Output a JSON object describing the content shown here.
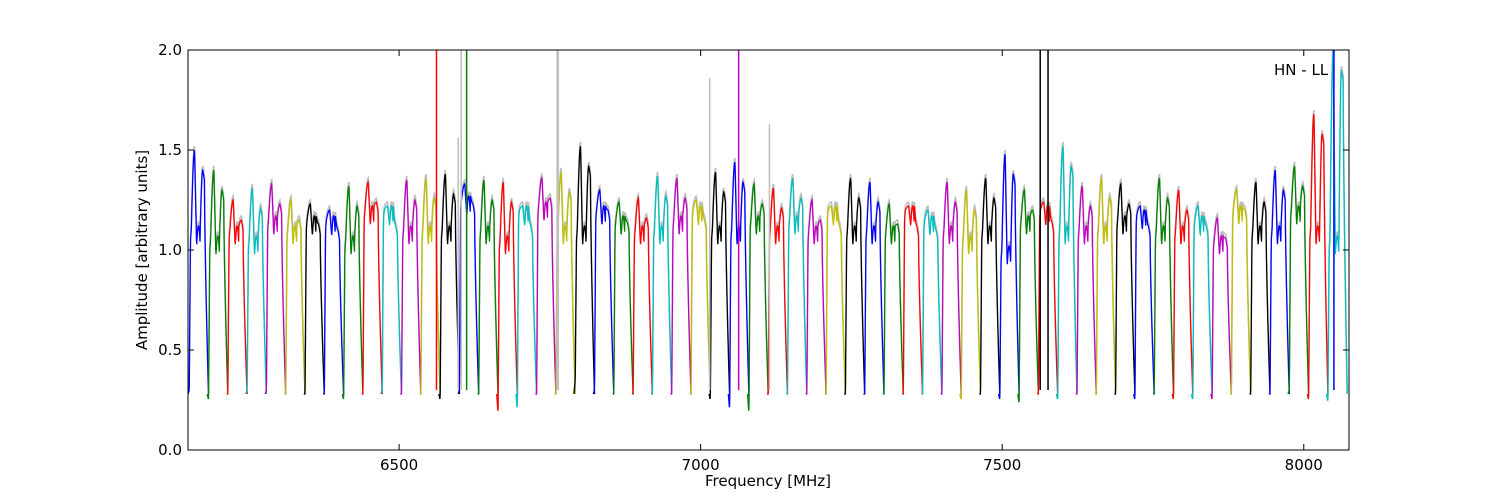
{
  "chart_data": {
    "type": "line",
    "title": "",
    "xlabel": "Frequency [MHz]",
    "ylabel": "Amplitude [arbitrary units]",
    "annotation": "HN - LL",
    "xlim": [
      6150,
      8075
    ],
    "ylim": [
      0.0,
      2.0
    ],
    "x_ticks": [
      6500,
      7000,
      7500,
      8000
    ],
    "x_tick_labels": [
      "6500",
      "7000",
      "7500",
      "8000"
    ],
    "y_ticks": [
      0.0,
      0.5,
      1.0,
      1.5,
      2.0
    ],
    "y_tick_labels": [
      "0.0",
      "0.5",
      "1.0",
      "1.5",
      "2.0"
    ],
    "grid": false,
    "legend": "none",
    "background_series_color": "#bfbfbf",
    "color_cycle": [
      "#0000ff",
      "#008000",
      "#ff0000",
      "#00bfbf",
      "#bf00bf",
      "#bfbf00",
      "#000000"
    ],
    "segment_start_mhz": 6150,
    "segment_width_mhz": 32,
    "segment_count": 60,
    "segment_peak_levels": [
      1.5,
      1.4,
      1.25,
      1.31,
      1.33,
      1.25,
      1.23,
      1.2,
      1.32,
      1.34,
      1.22,
      1.35,
      1.36,
      1.38,
      1.33,
      1.35,
      1.34,
      1.22,
      1.36,
      1.39,
      1.52,
      1.3,
      1.24,
      1.26,
      1.37,
      1.36,
      1.25,
      1.39,
      1.44,
      1.33,
      1.31,
      1.36,
      1.25,
      1.22,
      1.36,
      1.34,
      1.23,
      1.22,
      1.2,
      1.34,
      1.3,
      1.36,
      1.48,
      1.3,
      1.24,
      1.52,
      1.32,
      1.36,
      1.33,
      1.22,
      1.36,
      1.3,
      1.22,
      1.16,
      1.3,
      1.34,
      1.4,
      1.42,
      1.68,
      2.0
    ],
    "segment_plateau_levels": [
      1.1,
      1.05,
      1.1,
      1.05,
      1.15,
      1.1,
      1.15,
      1.15,
      1.05,
      1.2,
      1.2,
      1.1,
      1.1,
      1.1,
      1.25,
      1.1,
      1.05,
      1.2,
      1.22,
      1.1,
      1.1,
      1.2,
      1.15,
      1.1,
      1.1,
      1.15,
      1.2,
      1.1,
      1.1,
      1.15,
      1.1,
      1.15,
      1.1,
      1.2,
      1.1,
      1.1,
      1.1,
      1.2,
      1.15,
      1.1,
      1.05,
      1.1,
      1.0,
      1.15,
      1.2,
      1.1,
      1.1,
      1.1,
      1.15,
      1.18,
      1.1,
      1.1,
      1.15,
      1.05,
      1.2,
      1.1,
      1.1,
      1.2,
      1.1,
      1.05
    ],
    "segment_trough_levels": [
      0.3,
      0.25,
      0.28,
      0.3,
      0.3,
      0.28,
      0.28,
      0.28,
      0.25,
      0.28,
      0.3,
      0.28,
      0.28,
      0.25,
      0.3,
      0.28,
      0.18,
      0.2,
      0.28,
      0.28,
      0.35,
      0.3,
      0.28,
      0.28,
      0.28,
      0.28,
      0.28,
      0.25,
      0.2,
      0.18,
      0.28,
      0.28,
      0.28,
      0.28,
      0.28,
      0.28,
      0.28,
      0.28,
      0.28,
      0.28,
      0.25,
      0.28,
      0.25,
      0.23,
      0.28,
      0.25,
      0.28,
      0.28,
      0.28,
      0.25,
      0.28,
      0.25,
      0.25,
      0.25,
      0.28,
      0.28,
      0.28,
      0.3,
      0.25,
      0.24
    ],
    "spikes": [
      {
        "x": 6562,
        "y": 2.0,
        "color": "#ff0000"
      },
      {
        "x": 6598,
        "y": 1.56,
        "color": "#bfbfbf"
      },
      {
        "x": 6603,
        "y": 2.0,
        "color": "#bfbfbf"
      },
      {
        "x": 6612,
        "y": 2.0,
        "color": "#008000"
      },
      {
        "x": 6762,
        "y": 2.0,
        "color": "#bfbfbf"
      },
      {
        "x": 6764,
        "y": 2.0,
        "color": "#bfbfbf"
      },
      {
        "x": 7015,
        "y": 1.86,
        "color": "#bfbfbf"
      },
      {
        "x": 7063,
        "y": 2.0,
        "color": "#bf00bf"
      },
      {
        "x": 7114,
        "y": 1.63,
        "color": "#bfbfbf"
      },
      {
        "x": 7563,
        "y": 2.0,
        "color": "#000000"
      },
      {
        "x": 7576,
        "y": 2.0,
        "color": "#000000"
      },
      {
        "x": 8050,
        "y": 2.0,
        "color": "#0000ff"
      }
    ]
  }
}
